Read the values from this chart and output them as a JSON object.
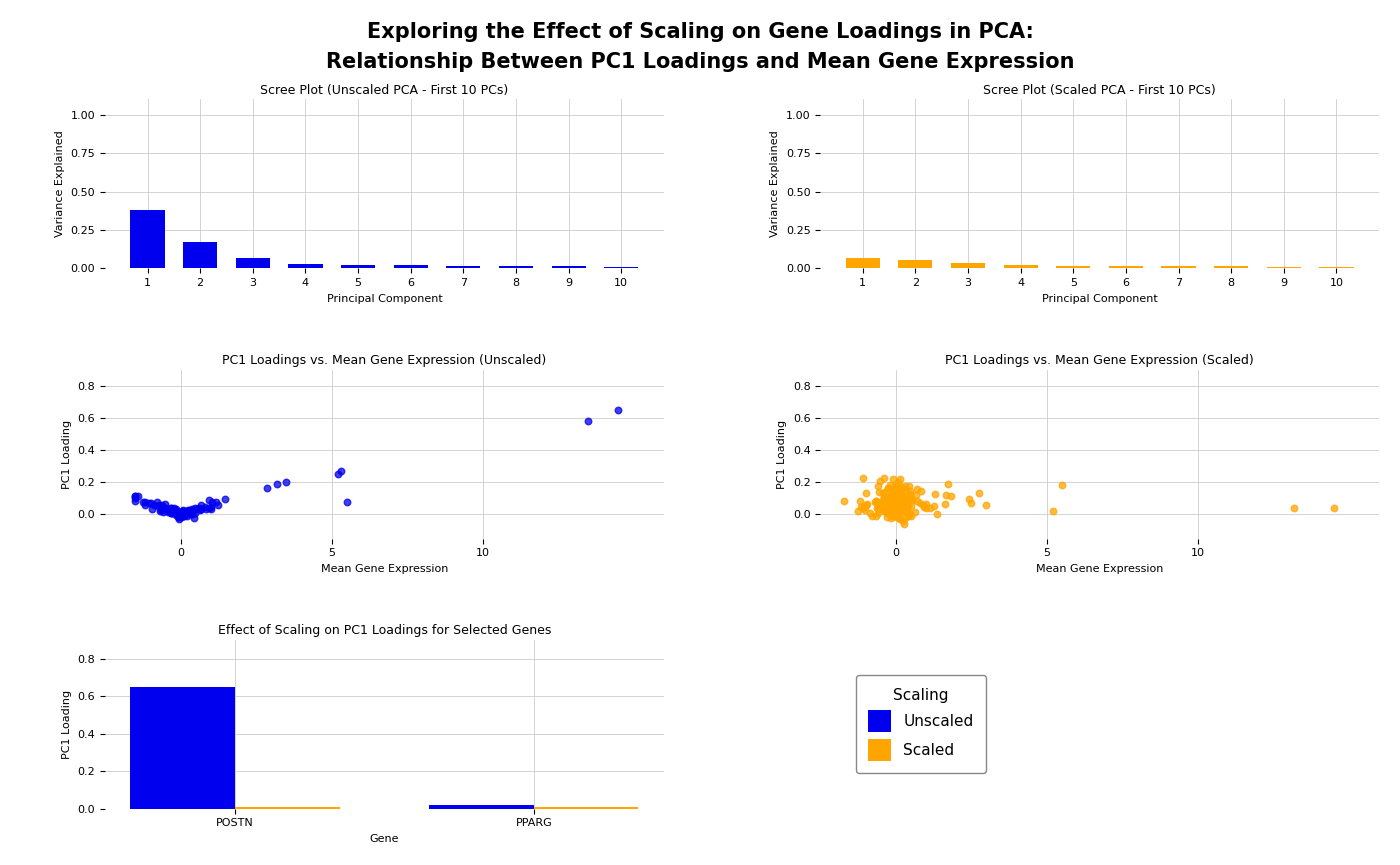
{
  "title_line1": "Exploring the Effect of Scaling on Gene Loadings in PCA:",
  "title_line2": "Relationship Between PC1 Loadings and Mean Gene Expression",
  "title_fontsize": 15,
  "title_fontweight": "bold",
  "unscaled_scree": [
    0.38,
    0.17,
    0.065,
    0.03,
    0.025,
    0.022,
    0.018,
    0.015,
    0.013,
    0.011
  ],
  "scaled_scree": [
    0.065,
    0.055,
    0.032,
    0.022,
    0.018,
    0.016,
    0.014,
    0.013,
    0.011,
    0.01
  ],
  "scree_title_unscaled": "Scree Plot (Unscaled PCA - First 10 PCs)",
  "scree_title_scaled": "Scree Plot (Scaled PCA - First 10 PCs)",
  "scree_ylabel": "Variance Explained",
  "scree_xlabel": "Principal Component",
  "scree_ylim": [
    0,
    1.1
  ],
  "scree_yticks": [
    0.0,
    0.25,
    0.5,
    0.75,
    1.0
  ],
  "scree_xticks": [
    1,
    2,
    3,
    4,
    5,
    6,
    7,
    8,
    9,
    10
  ],
  "scatter_title_unscaled": "PC1 Loadings vs. Mean Gene Expression (Unscaled)",
  "scatter_title_scaled": "PC1 Loadings vs. Mean Gene Expression (Scaled)",
  "scatter_xlabel": "Mean Gene Expression",
  "scatter_ylabel": "PC1 Loading",
  "scatter_xlim": [
    -2.5,
    16
  ],
  "scatter_ylim": [
    -0.15,
    0.9
  ],
  "scatter_yticks": [
    0.0,
    0.2,
    0.4,
    0.6,
    0.8
  ],
  "scatter_xticks": [
    0,
    5,
    10
  ],
  "bar_genes": [
    "POSTN",
    "PPARG"
  ],
  "bar_unscaled": [
    0.65,
    0.018
  ],
  "bar_scaled": [
    0.008,
    0.008
  ],
  "bar_title": "Effect of Scaling on PC1 Loadings for Selected Genes",
  "bar_xlabel": "Gene",
  "bar_ylabel": "PC1 Loading",
  "bar_ylim": [
    0,
    0.9
  ],
  "bar_yticks": [
    0.0,
    0.2,
    0.4,
    0.6,
    0.8
  ],
  "legend_title": "Scaling",
  "legend_labels": [
    "Unscaled",
    "Scaled"
  ],
  "color_unscaled": "#0000EE",
  "color_scaled": "#FFA500",
  "bg_color": "#FFFFFF",
  "grid_color": "#CCCCCC",
  "font_family": "DejaVu Sans"
}
